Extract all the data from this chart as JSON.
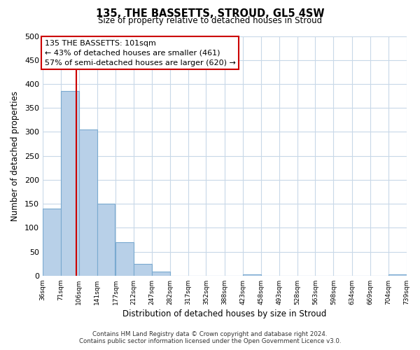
{
  "title": "135, THE BASSETTS, STROUD, GL5 4SW",
  "subtitle": "Size of property relative to detached houses in Stroud",
  "xlabel": "Distribution of detached houses by size in Stroud",
  "ylabel": "Number of detached properties",
  "bar_edges": [
    36,
    71,
    106,
    141,
    177,
    212,
    247,
    282,
    317,
    352,
    388,
    423,
    458,
    493,
    528,
    563,
    598,
    634,
    669,
    704,
    739
  ],
  "bar_heights": [
    140,
    385,
    305,
    150,
    70,
    25,
    8,
    0,
    0,
    0,
    0,
    2,
    0,
    0,
    0,
    0,
    0,
    0,
    0,
    2
  ],
  "bar_color": "#b8d0e8",
  "bar_edgecolor": "#7aaad0",
  "marker_x": 101,
  "marker_color": "#cc0000",
  "ylim": [
    0,
    500
  ],
  "xlim": [
    36,
    739
  ],
  "annotation_title": "135 THE BASSETTS: 101sqm",
  "annotation_line1": "← 43% of detached houses are smaller (461)",
  "annotation_line2": "57% of semi-detached houses are larger (620) →",
  "annotation_box_color": "#ffffff",
  "annotation_box_edgecolor": "#cc0000",
  "tick_labels": [
    "36sqm",
    "71sqm",
    "106sqm",
    "141sqm",
    "177sqm",
    "212sqm",
    "247sqm",
    "282sqm",
    "317sqm",
    "352sqm",
    "388sqm",
    "423sqm",
    "458sqm",
    "493sqm",
    "528sqm",
    "563sqm",
    "598sqm",
    "634sqm",
    "669sqm",
    "704sqm",
    "739sqm"
  ],
  "tick_positions": [
    36,
    71,
    106,
    141,
    177,
    212,
    247,
    282,
    317,
    352,
    388,
    423,
    458,
    493,
    528,
    563,
    598,
    634,
    669,
    704,
    739
  ],
  "yticks": [
    0,
    50,
    100,
    150,
    200,
    250,
    300,
    350,
    400,
    450,
    500
  ],
  "footer_line1": "Contains HM Land Registry data © Crown copyright and database right 2024.",
  "footer_line2": "Contains public sector information licensed under the Open Government Licence v3.0.",
  "background_color": "#ffffff",
  "grid_color": "#c8d8e8"
}
